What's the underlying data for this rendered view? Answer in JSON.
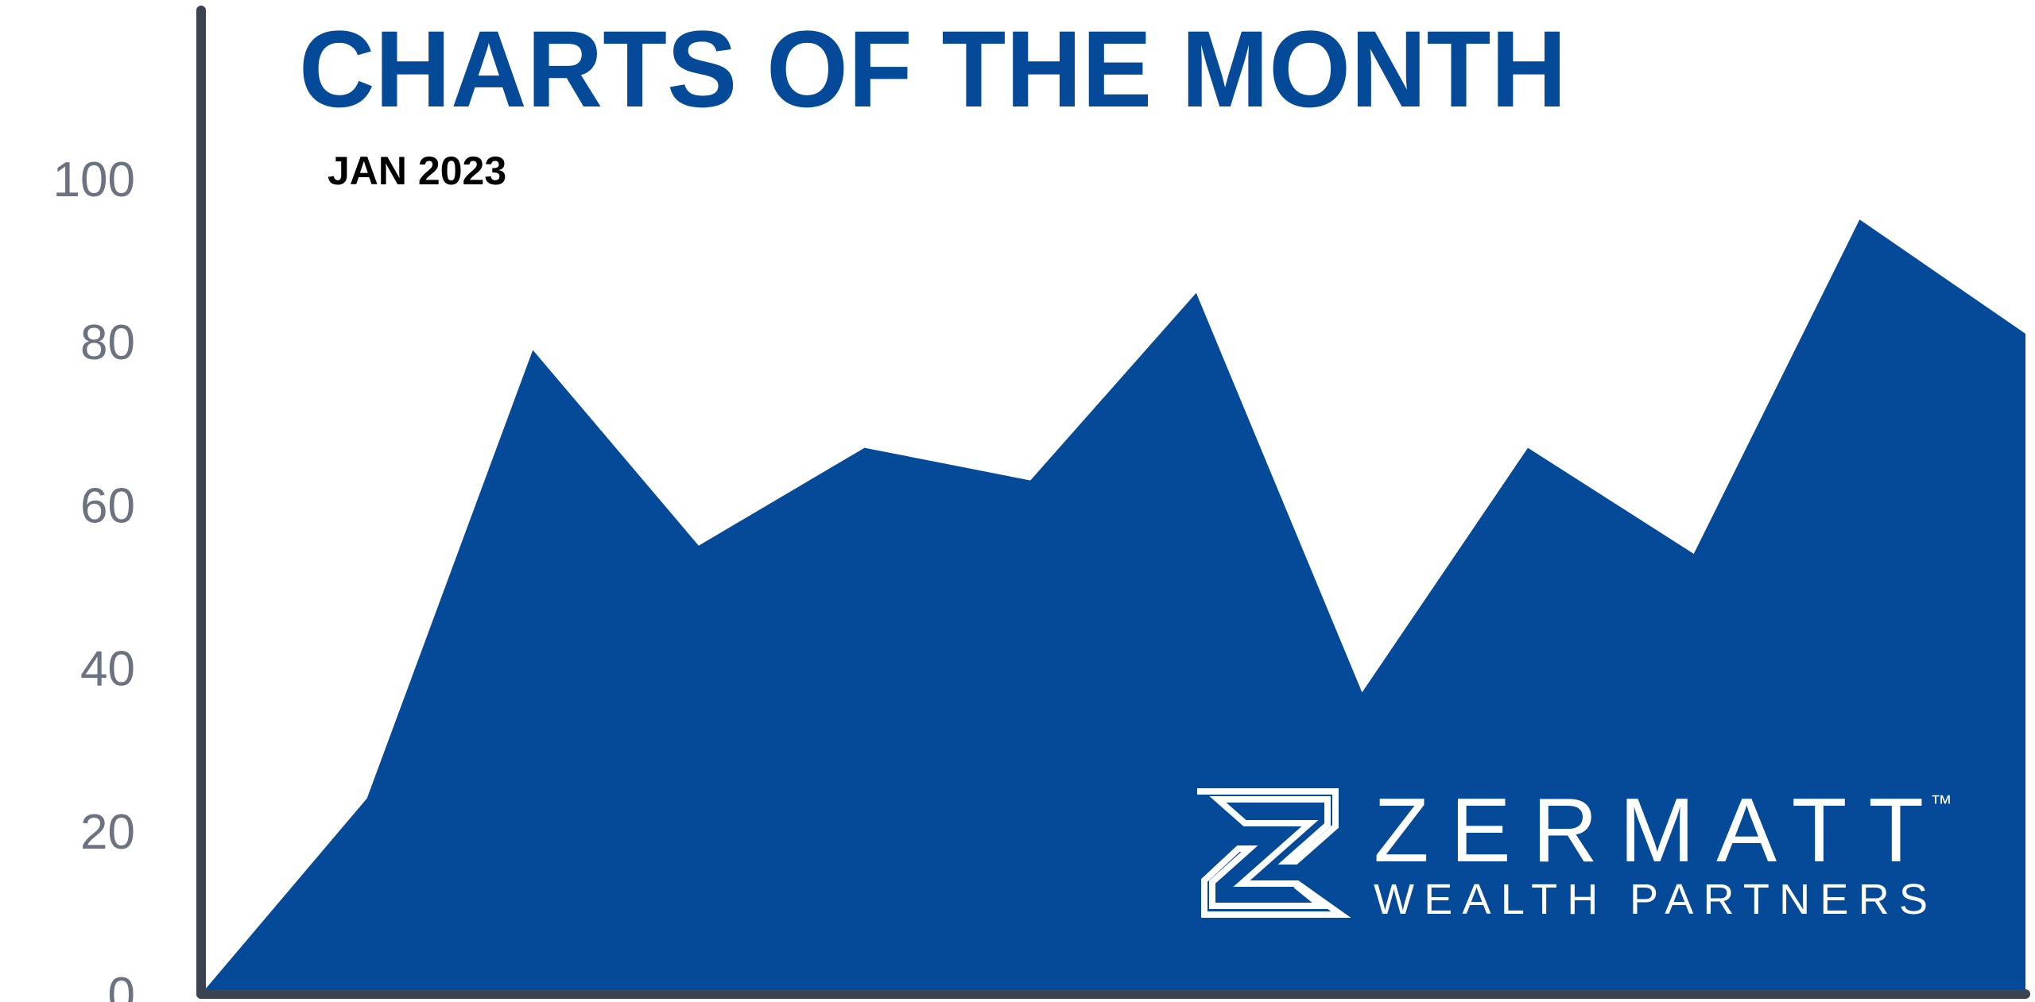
{
  "chart_data": {
    "type": "area",
    "title": "CHARTS OF THE MONTH",
    "subtitle": "JAN 2023",
    "categories": [
      null,
      null,
      null,
      null,
      null,
      null,
      null,
      null,
      null,
      null,
      null,
      null
    ],
    "values": [
      0,
      24,
      79,
      55,
      67,
      63,
      86,
      37,
      67,
      54,
      95,
      81
    ],
    "color": "#044a98",
    "ylim": [
      0,
      100
    ],
    "yticks": [
      0,
      20,
      40,
      60,
      80,
      100
    ],
    "grid": false
  },
  "logo": {
    "name": "ZERMATT",
    "mark": "™",
    "tagline": "WEALTH PARTNERS"
  }
}
